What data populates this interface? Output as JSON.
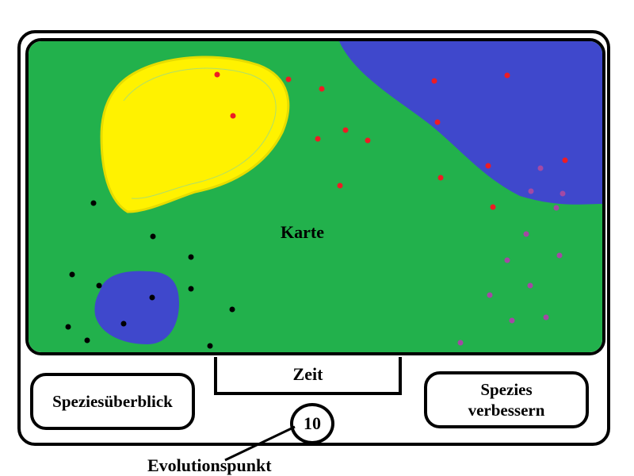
{
  "map": {
    "label": "Karte",
    "colors": {
      "land": "#22b14c",
      "sea": "#3f48cc",
      "desert": "#fff200"
    }
  },
  "buttons": {
    "species_overview": "Speziesüberblick",
    "improve_species_line1": "Spezies",
    "improve_species_line2": "verbessern"
  },
  "time": {
    "label": "Zeit"
  },
  "evolution": {
    "points": "10",
    "label": "Evolutionspunkt"
  },
  "species_colors": {
    "red": "#ed1c24",
    "black": "#000000",
    "purple": "#a349a4"
  }
}
